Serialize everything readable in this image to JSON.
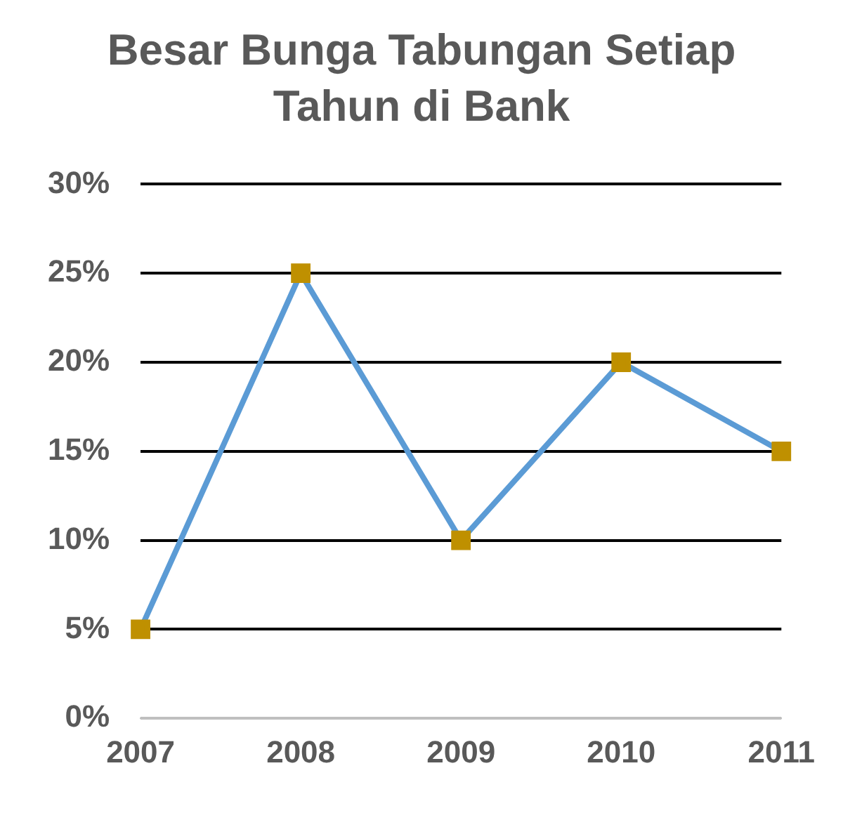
{
  "chart_data": {
    "type": "line",
    "title": "Besar Bunga Tabungan Setiap Tahun di Bank",
    "categories": [
      "2007",
      "2008",
      "2009",
      "2010",
      "2011"
    ],
    "series": [
      {
        "color": "#5b9bd5",
        "colors": [
          "#bf9000",
          "#bf9000",
          "#bf9000",
          "#bf9000",
          "#bf9000"
        ],
        "values": [
          5,
          25,
          10,
          20,
          15
        ]
      }
    ],
    "ylim": [
      0,
      30
    ],
    "yticks": [
      {
        "value": 0,
        "label": "0%"
      },
      {
        "value": 5,
        "label": "5%"
      },
      {
        "value": 10,
        "label": "10%"
      },
      {
        "value": 15,
        "label": "15%"
      },
      {
        "value": 20,
        "label": "20%"
      },
      {
        "value": 25,
        "label": "25%"
      },
      {
        "value": 30,
        "label": "30%"
      }
    ],
    "grid": "y",
    "legend": false,
    "marker": "square",
    "line_style": "solid"
  }
}
